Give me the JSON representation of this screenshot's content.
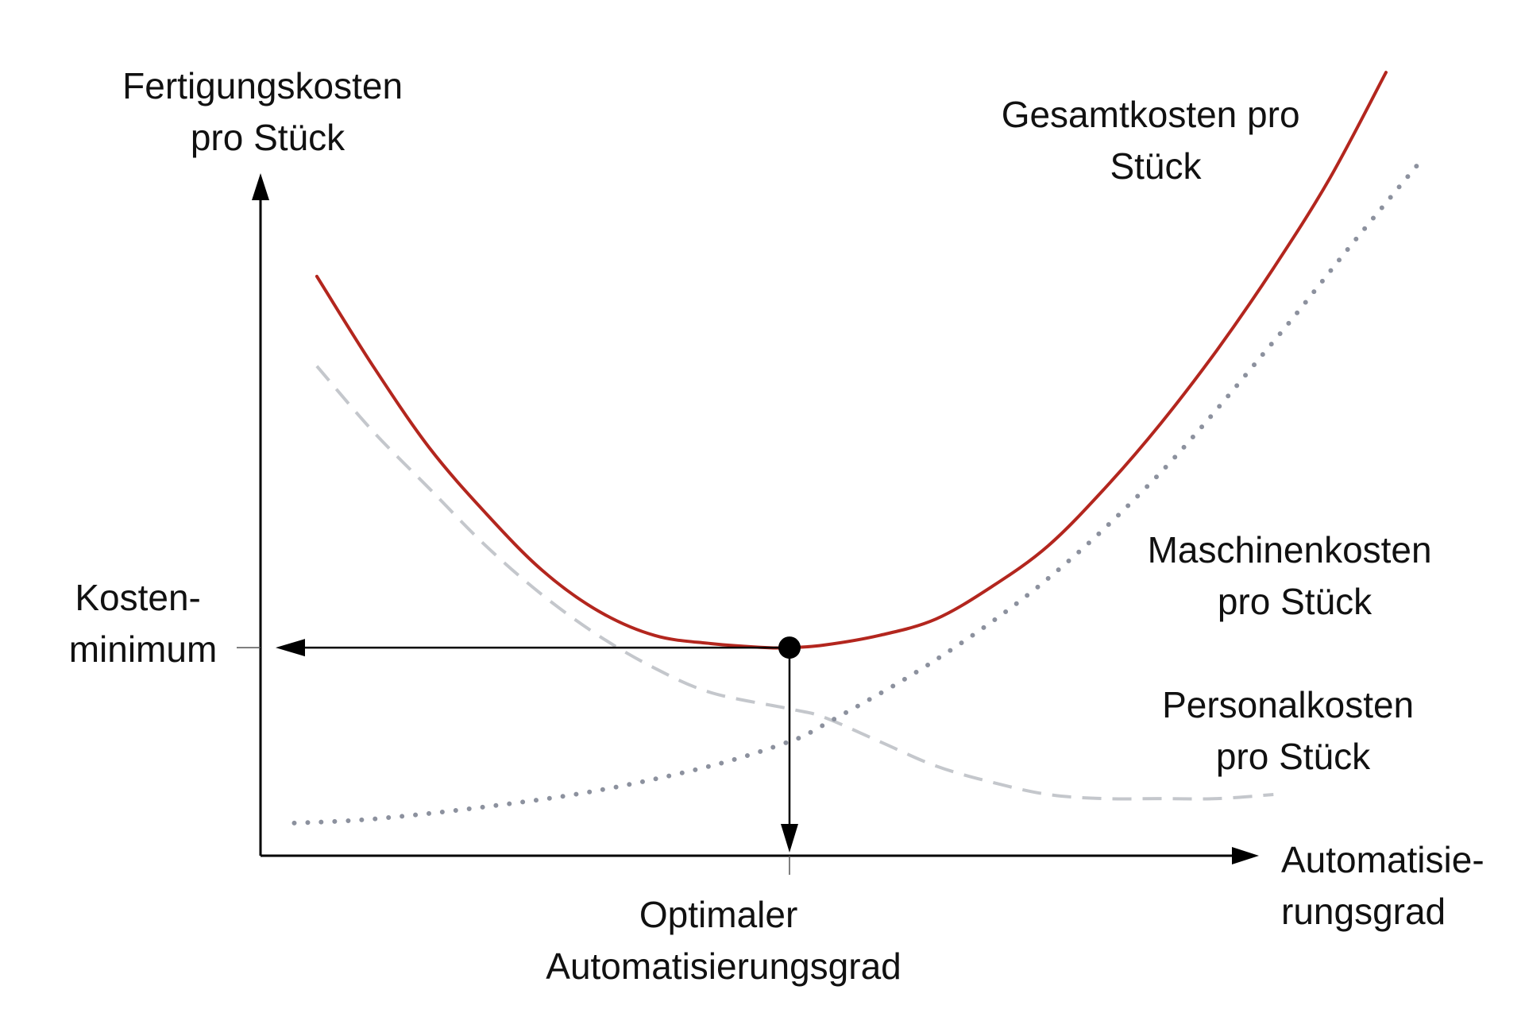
{
  "chart_data": {
    "type": "line",
    "ylabel": [
      "Fertigungskosten",
      "pro Stück"
    ],
    "xlabel": [
      "Automatisie-",
      "rungsgrad"
    ],
    "xlim": [
      0,
      1
    ],
    "ylim": [
      0,
      1
    ],
    "series": [
      {
        "name": [
          "Gesamtkosten pro",
          "Stück"
        ],
        "style": "solid",
        "color": "#b3261e",
        "x": [
          0.05,
          0.1,
          0.15,
          0.2,
          0.25,
          0.3,
          0.35,
          0.4,
          0.45,
          0.47,
          0.5,
          0.55,
          0.6,
          0.65,
          0.7,
          0.75,
          0.8,
          0.85,
          0.9,
          0.95,
          1.0
        ],
        "y": [
          0.71,
          0.6,
          0.5,
          0.42,
          0.35,
          0.3,
          0.27,
          0.26,
          0.255,
          0.255,
          0.258,
          0.27,
          0.29,
          0.33,
          0.38,
          0.45,
          0.53,
          0.62,
          0.72,
          0.83,
          0.96
        ]
      },
      {
        "name": [
          "Maschinenkosten",
          "pro Stück"
        ],
        "style": "dotted",
        "color": "#8c919e",
        "x": [
          0.03,
          0.1,
          0.2,
          0.3,
          0.4,
          0.47,
          0.5,
          0.6,
          0.7,
          0.8,
          0.9,
          0.97,
          1.03
        ],
        "y": [
          0.04,
          0.045,
          0.06,
          0.08,
          0.11,
          0.14,
          0.16,
          0.24,
          0.34,
          0.47,
          0.63,
          0.75,
          0.85
        ]
      },
      {
        "name": [
          "Personalkosten",
          "pro Stück"
        ],
        "style": "dashed",
        "color": "#c4c7cc",
        "x": [
          0.05,
          0.1,
          0.15,
          0.2,
          0.25,
          0.3,
          0.35,
          0.4,
          0.47,
          0.5,
          0.55,
          0.6,
          0.65,
          0.7,
          0.75,
          0.8,
          0.85,
          0.9
        ],
        "y": [
          0.6,
          0.52,
          0.45,
          0.38,
          0.32,
          0.27,
          0.23,
          0.2,
          0.18,
          0.17,
          0.14,
          0.11,
          0.09,
          0.075,
          0.07,
          0.07,
          0.07,
          0.075
        ]
      }
    ],
    "annotations": {
      "minimum_label": [
        "Kosten-",
        "minimum"
      ],
      "optimum_label": [
        "Optimaler",
        "Automatisierungsgrad"
      ],
      "optimum_point": {
        "x": 0.47,
        "y": 0.255
      }
    },
    "grid": false,
    "legend": "none",
    "colors": {
      "axis": "#000000",
      "guide": "#000000",
      "point": "#000000"
    }
  }
}
